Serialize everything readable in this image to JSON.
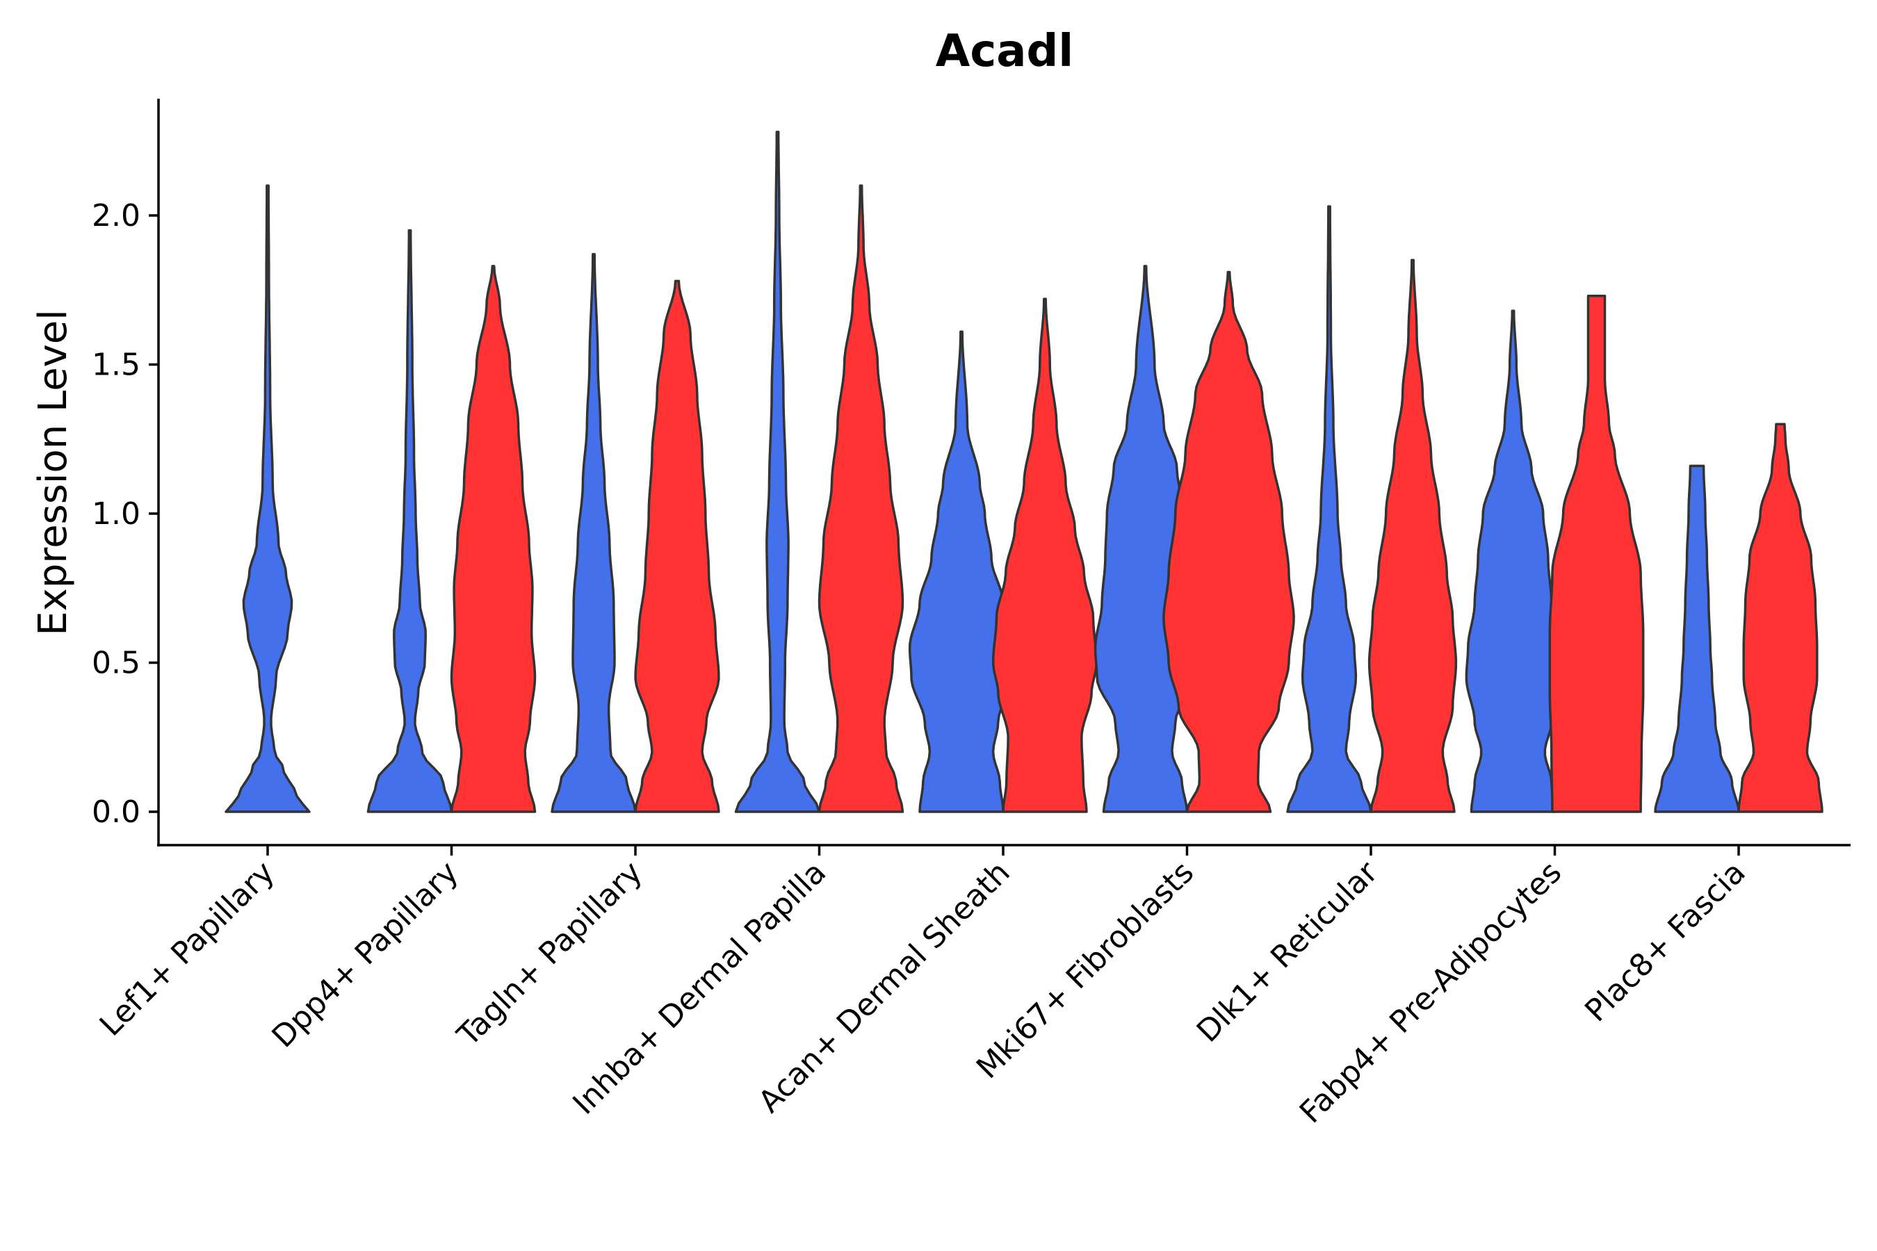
{
  "chart_data": {
    "type": "violin",
    "title": "Acadl",
    "xlabel": "",
    "ylabel": "Expression Level",
    "ylim": [
      -0.12,
      2.4
    ],
    "yticks": [
      0.0,
      0.5,
      1.0,
      1.5,
      2.0
    ],
    "ytick_labels": [
      "0.0",
      "0.5",
      "1.0",
      "1.5",
      "2.0"
    ],
    "group_colors": {
      "group1": "#4470ec",
      "group2": "#ff3333"
    },
    "categories": [
      "Lef1+ Papillary",
      "Dpp4+ Papillary",
      "Tagln+ Papillary",
      "Inhba+ Dermal Papilla",
      "Acan+ Dermal Sheath",
      "Mki67+ Fibroblasts",
      "Dlk1+ Reticular",
      "Fabp4+ Pre-Adipocytes",
      "Plac8+ Fascia"
    ],
    "violins": [
      {
        "category": "Lef1+ Papillary",
        "group": "group1",
        "max": 2.1,
        "profile": [
          [
            0,
            0.5
          ],
          [
            0.05,
            0.35
          ],
          [
            0.15,
            0.18
          ],
          [
            0.2,
            0.08
          ],
          [
            0.3,
            0.04
          ],
          [
            0.45,
            0.1
          ],
          [
            0.6,
            0.24
          ],
          [
            0.7,
            0.29
          ],
          [
            0.8,
            0.22
          ],
          [
            0.9,
            0.13
          ],
          [
            1.1,
            0.06
          ],
          [
            1.4,
            0.03
          ],
          [
            1.8,
            0.015
          ],
          [
            2.1,
            0.01
          ]
        ]
      },
      {
        "category": "Dpp4+ Papillary",
        "group": "group1",
        "max": 1.95,
        "profile": [
          [
            0,
            0.5
          ],
          [
            0.1,
            0.4
          ],
          [
            0.2,
            0.15
          ],
          [
            0.3,
            0.06
          ],
          [
            0.4,
            0.1
          ],
          [
            0.5,
            0.18
          ],
          [
            0.6,
            0.19
          ],
          [
            0.7,
            0.12
          ],
          [
            0.85,
            0.09
          ],
          [
            1.0,
            0.07
          ],
          [
            1.2,
            0.05
          ],
          [
            1.5,
            0.03
          ],
          [
            1.95,
            0.01
          ]
        ]
      },
      {
        "category": "Dpp4+ Papillary",
        "group": "group2",
        "max": 1.83,
        "profile": [
          [
            0,
            0.5
          ],
          [
            0.1,
            0.42
          ],
          [
            0.2,
            0.38
          ],
          [
            0.3,
            0.44
          ],
          [
            0.45,
            0.5
          ],
          [
            0.6,
            0.46
          ],
          [
            0.75,
            0.47
          ],
          [
            0.9,
            0.43
          ],
          [
            1.1,
            0.35
          ],
          [
            1.3,
            0.3
          ],
          [
            1.5,
            0.2
          ],
          [
            1.7,
            0.08
          ],
          [
            1.83,
            0.01
          ]
        ]
      },
      {
        "category": "Tagln+ Papillary",
        "group": "group1",
        "max": 1.87,
        "profile": [
          [
            0,
            0.5
          ],
          [
            0.1,
            0.4
          ],
          [
            0.2,
            0.2
          ],
          [
            0.35,
            0.18
          ],
          [
            0.5,
            0.25
          ],
          [
            0.7,
            0.24
          ],
          [
            0.9,
            0.19
          ],
          [
            1.1,
            0.13
          ],
          [
            1.3,
            0.08
          ],
          [
            1.5,
            0.05
          ],
          [
            1.87,
            0.01
          ]
        ]
      },
      {
        "category": "Tagln+ Papillary",
        "group": "group2",
        "max": 1.78,
        "profile": [
          [
            0,
            0.5
          ],
          [
            0.1,
            0.42
          ],
          [
            0.2,
            0.3
          ],
          [
            0.3,
            0.35
          ],
          [
            0.45,
            0.5
          ],
          [
            0.6,
            0.46
          ],
          [
            0.8,
            0.38
          ],
          [
            1.0,
            0.34
          ],
          [
            1.2,
            0.3
          ],
          [
            1.4,
            0.24
          ],
          [
            1.6,
            0.16
          ],
          [
            1.78,
            0.02
          ]
        ]
      },
      {
        "category": "Inhba+ Dermal Papilla",
        "group": "group1",
        "max": 2.28,
        "profile": [
          [
            0,
            0.5
          ],
          [
            0.1,
            0.32
          ],
          [
            0.2,
            0.12
          ],
          [
            0.3,
            0.08
          ],
          [
            0.5,
            0.09
          ],
          [
            0.7,
            0.12
          ],
          [
            0.9,
            0.13
          ],
          [
            1.1,
            0.1
          ],
          [
            1.4,
            0.07
          ],
          [
            1.7,
            0.04
          ],
          [
            2.0,
            0.02
          ],
          [
            2.28,
            0.01
          ]
        ]
      },
      {
        "category": "Inhba+ Dermal Papilla",
        "group": "group2",
        "max": 2.1,
        "profile": [
          [
            0,
            0.5
          ],
          [
            0.1,
            0.42
          ],
          [
            0.2,
            0.3
          ],
          [
            0.3,
            0.28
          ],
          [
            0.5,
            0.38
          ],
          [
            0.7,
            0.5
          ],
          [
            0.9,
            0.45
          ],
          [
            1.1,
            0.35
          ],
          [
            1.3,
            0.28
          ],
          [
            1.5,
            0.2
          ],
          [
            1.7,
            0.1
          ],
          [
            1.9,
            0.03
          ],
          [
            2.1,
            0.01
          ]
        ]
      },
      {
        "category": "Acan+ Dermal Sheath",
        "group": "group1",
        "max": 1.61,
        "profile": [
          [
            0,
            0.5
          ],
          [
            0.1,
            0.46
          ],
          [
            0.2,
            0.38
          ],
          [
            0.3,
            0.44
          ],
          [
            0.45,
            0.6
          ],
          [
            0.55,
            0.62
          ],
          [
            0.7,
            0.5
          ],
          [
            0.85,
            0.36
          ],
          [
            1.0,
            0.28
          ],
          [
            1.1,
            0.22
          ],
          [
            1.3,
            0.07
          ],
          [
            1.61,
            0.01
          ]
        ]
      },
      {
        "category": "Acan+ Dermal Sheath",
        "group": "group2",
        "max": 1.72,
        "profile": [
          [
            0,
            0.5
          ],
          [
            0.1,
            0.46
          ],
          [
            0.25,
            0.44
          ],
          [
            0.4,
            0.56
          ],
          [
            0.5,
            0.62
          ],
          [
            0.65,
            0.58
          ],
          [
            0.8,
            0.47
          ],
          [
            0.95,
            0.36
          ],
          [
            1.1,
            0.25
          ],
          [
            1.3,
            0.14
          ],
          [
            1.5,
            0.06
          ],
          [
            1.72,
            0.01
          ]
        ]
      },
      {
        "category": "Mki67+ Fibroblasts",
        "group": "group1",
        "max": 1.83,
        "profile": [
          [
            0,
            0.5
          ],
          [
            0.1,
            0.44
          ],
          [
            0.2,
            0.32
          ],
          [
            0.3,
            0.36
          ],
          [
            0.45,
            0.58
          ],
          [
            0.55,
            0.6
          ],
          [
            0.7,
            0.52
          ],
          [
            0.85,
            0.48
          ],
          [
            1.0,
            0.46
          ],
          [
            1.15,
            0.38
          ],
          [
            1.3,
            0.22
          ],
          [
            1.5,
            0.11
          ],
          [
            1.83,
            0.01
          ]
        ]
      },
      {
        "category": "Mki67+ Fibroblasts",
        "group": "group2",
        "max": 1.81,
        "profile": [
          [
            0,
            0.5
          ],
          [
            0.1,
            0.35
          ],
          [
            0.2,
            0.36
          ],
          [
            0.35,
            0.6
          ],
          [
            0.5,
            0.72
          ],
          [
            0.65,
            0.78
          ],
          [
            0.8,
            0.72
          ],
          [
            1.0,
            0.64
          ],
          [
            1.2,
            0.52
          ],
          [
            1.4,
            0.4
          ],
          [
            1.55,
            0.22
          ],
          [
            1.7,
            0.05
          ],
          [
            1.81,
            0.01
          ]
        ]
      },
      {
        "category": "Dlk1+ Reticular",
        "group": "group1",
        "max": 2.03,
        "profile": [
          [
            0,
            0.5
          ],
          [
            0.1,
            0.38
          ],
          [
            0.2,
            0.2
          ],
          [
            0.3,
            0.24
          ],
          [
            0.45,
            0.32
          ],
          [
            0.55,
            0.3
          ],
          [
            0.7,
            0.2
          ],
          [
            0.85,
            0.14
          ],
          [
            1.0,
            0.1
          ],
          [
            1.3,
            0.05
          ],
          [
            1.6,
            0.02
          ],
          [
            2.03,
            0.01
          ]
        ]
      },
      {
        "category": "Dlk1+ Reticular",
        "group": "group2",
        "max": 1.85,
        "profile": [
          [
            0,
            0.5
          ],
          [
            0.1,
            0.42
          ],
          [
            0.2,
            0.36
          ],
          [
            0.35,
            0.48
          ],
          [
            0.5,
            0.52
          ],
          [
            0.65,
            0.48
          ],
          [
            0.8,
            0.41
          ],
          [
            1.0,
            0.32
          ],
          [
            1.2,
            0.22
          ],
          [
            1.4,
            0.12
          ],
          [
            1.6,
            0.05
          ],
          [
            1.85,
            0.01
          ]
        ]
      },
      {
        "category": "Fabp4+ Pre-Adipocytes",
        "group": "group1",
        "max": 1.68,
        "profile": [
          [
            0,
            0.5
          ],
          [
            0.1,
            0.46
          ],
          [
            0.2,
            0.38
          ],
          [
            0.3,
            0.46
          ],
          [
            0.45,
            0.56
          ],
          [
            0.55,
            0.54
          ],
          [
            0.7,
            0.46
          ],
          [
            0.85,
            0.42
          ],
          [
            1.0,
            0.36
          ],
          [
            1.15,
            0.22
          ],
          [
            1.3,
            0.1
          ],
          [
            1.5,
            0.04
          ],
          [
            1.68,
            0.01
          ]
        ]
      },
      {
        "category": "Fabp4+ Pre-Adipocytes",
        "group": "group2",
        "max": 1.73,
        "profile": [
          [
            0,
            0.53
          ],
          [
            0.2,
            0.54
          ],
          [
            0.4,
            0.56
          ],
          [
            0.6,
            0.56
          ],
          [
            0.8,
            0.53
          ],
          [
            1.0,
            0.4
          ],
          [
            1.2,
            0.22
          ],
          [
            1.3,
            0.15
          ],
          [
            1.45,
            0.1
          ],
          [
            1.6,
            0.1
          ],
          [
            1.73,
            0.1
          ]
        ]
      },
      {
        "category": "Plac8+ Fascia",
        "group": "group1",
        "max": 1.16,
        "profile": [
          [
            0,
            0.5
          ],
          [
            0.1,
            0.42
          ],
          [
            0.2,
            0.28
          ],
          [
            0.3,
            0.22
          ],
          [
            0.45,
            0.18
          ],
          [
            0.55,
            0.16
          ],
          [
            0.7,
            0.14
          ],
          [
            0.85,
            0.12
          ],
          [
            1.0,
            0.1
          ],
          [
            1.16,
            0.08
          ]
        ]
      },
      {
        "category": "Plac8+ Fascia",
        "group": "group2",
        "max": 1.3,
        "profile": [
          [
            0,
            0.5
          ],
          [
            0.1,
            0.46
          ],
          [
            0.2,
            0.32
          ],
          [
            0.3,
            0.36
          ],
          [
            0.45,
            0.44
          ],
          [
            0.55,
            0.44
          ],
          [
            0.7,
            0.42
          ],
          [
            0.85,
            0.37
          ],
          [
            1.0,
            0.24
          ],
          [
            1.15,
            0.1
          ],
          [
            1.25,
            0.06
          ],
          [
            1.3,
            0.05
          ]
        ]
      }
    ]
  }
}
